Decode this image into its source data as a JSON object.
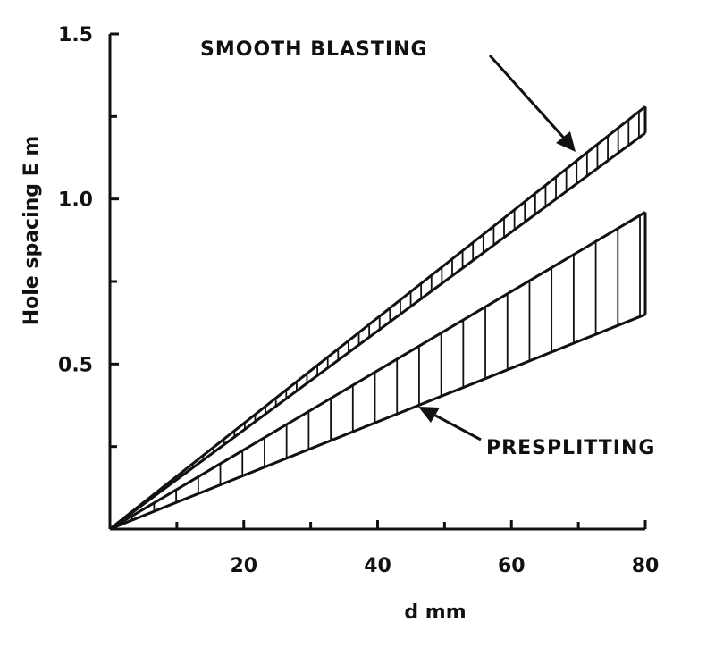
{
  "chart_data": {
    "type": "area",
    "title": "",
    "xlabel": "d mm",
    "ylabel": "Hole spacing E m",
    "xlim": [
      0,
      80
    ],
    "ylim": [
      0,
      1.5
    ],
    "x_ticks": [
      20,
      40,
      60,
      80
    ],
    "y_ticks": [
      0.5,
      1.0,
      1.5
    ],
    "x_tick_labels": [
      "20",
      "40",
      "60",
      "80"
    ],
    "y_tick_labels": [
      "0.5",
      "1.0",
      "1.5"
    ],
    "grid": false,
    "series": [
      {
        "name": "SMOOTH BLASTING",
        "x": [
          0,
          80
        ],
        "lower": [
          0,
          1.2
        ],
        "upper": [
          0,
          1.28
        ]
      },
      {
        "name": "PRESPLITTING",
        "x": [
          0,
          80
        ],
        "lower": [
          0,
          0.65
        ],
        "upper": [
          0,
          0.96
        ]
      }
    ]
  }
}
